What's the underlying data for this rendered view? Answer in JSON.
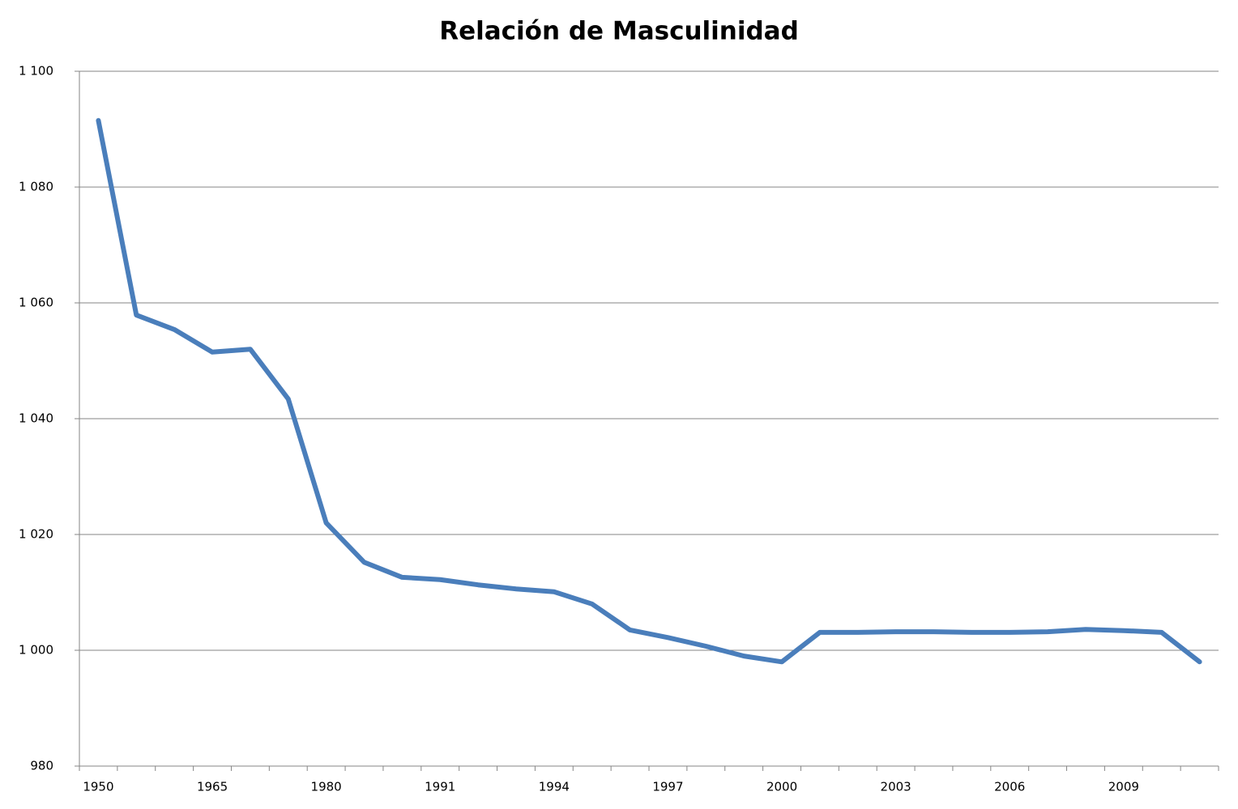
{
  "chart_data": {
    "type": "line",
    "title": "Relación de Masculinidad",
    "categories": [
      "1950",
      null,
      null,
      "1965",
      null,
      null,
      "1980",
      null,
      null,
      "1991",
      null,
      null,
      "1994",
      null,
      null,
      "1997",
      null,
      null,
      "2000",
      null,
      null,
      "2003",
      null,
      null,
      "2006",
      null,
      null,
      "2009",
      null,
      null
    ],
    "series": [
      {
        "color": "#4a7ebb",
        "values": [
          1091.5,
          1057.9,
          1055.4,
          1051.5,
          1052.0,
          1043.4,
          1022.0,
          1015.2,
          1012.6,
          1012.2,
          1011.3,
          1010.6,
          1010.1,
          1008.0,
          1003.5,
          1002.2,
          1000.7,
          999.0,
          998.0,
          1003.1,
          1003.1,
          1003.2,
          1003.2,
          1003.1,
          1003.1,
          1003.2,
          1003.6,
          1003.4,
          1003.1,
          998.0
        ]
      }
    ],
    "ylim": [
      980,
      1100
    ],
    "yticks": [
      980,
      {
        "value": 1000,
        "label": "1 000"
      },
      {
        "value": 1020,
        "label": "1 020"
      },
      {
        "value": 1040,
        "label": "1 040"
      },
      {
        "value": 1060,
        "label": "1 060"
      },
      {
        "value": 1080,
        "label": "1 080"
      },
      {
        "value": 1100,
        "label": "1 100"
      }
    ],
    "grid": true
  }
}
